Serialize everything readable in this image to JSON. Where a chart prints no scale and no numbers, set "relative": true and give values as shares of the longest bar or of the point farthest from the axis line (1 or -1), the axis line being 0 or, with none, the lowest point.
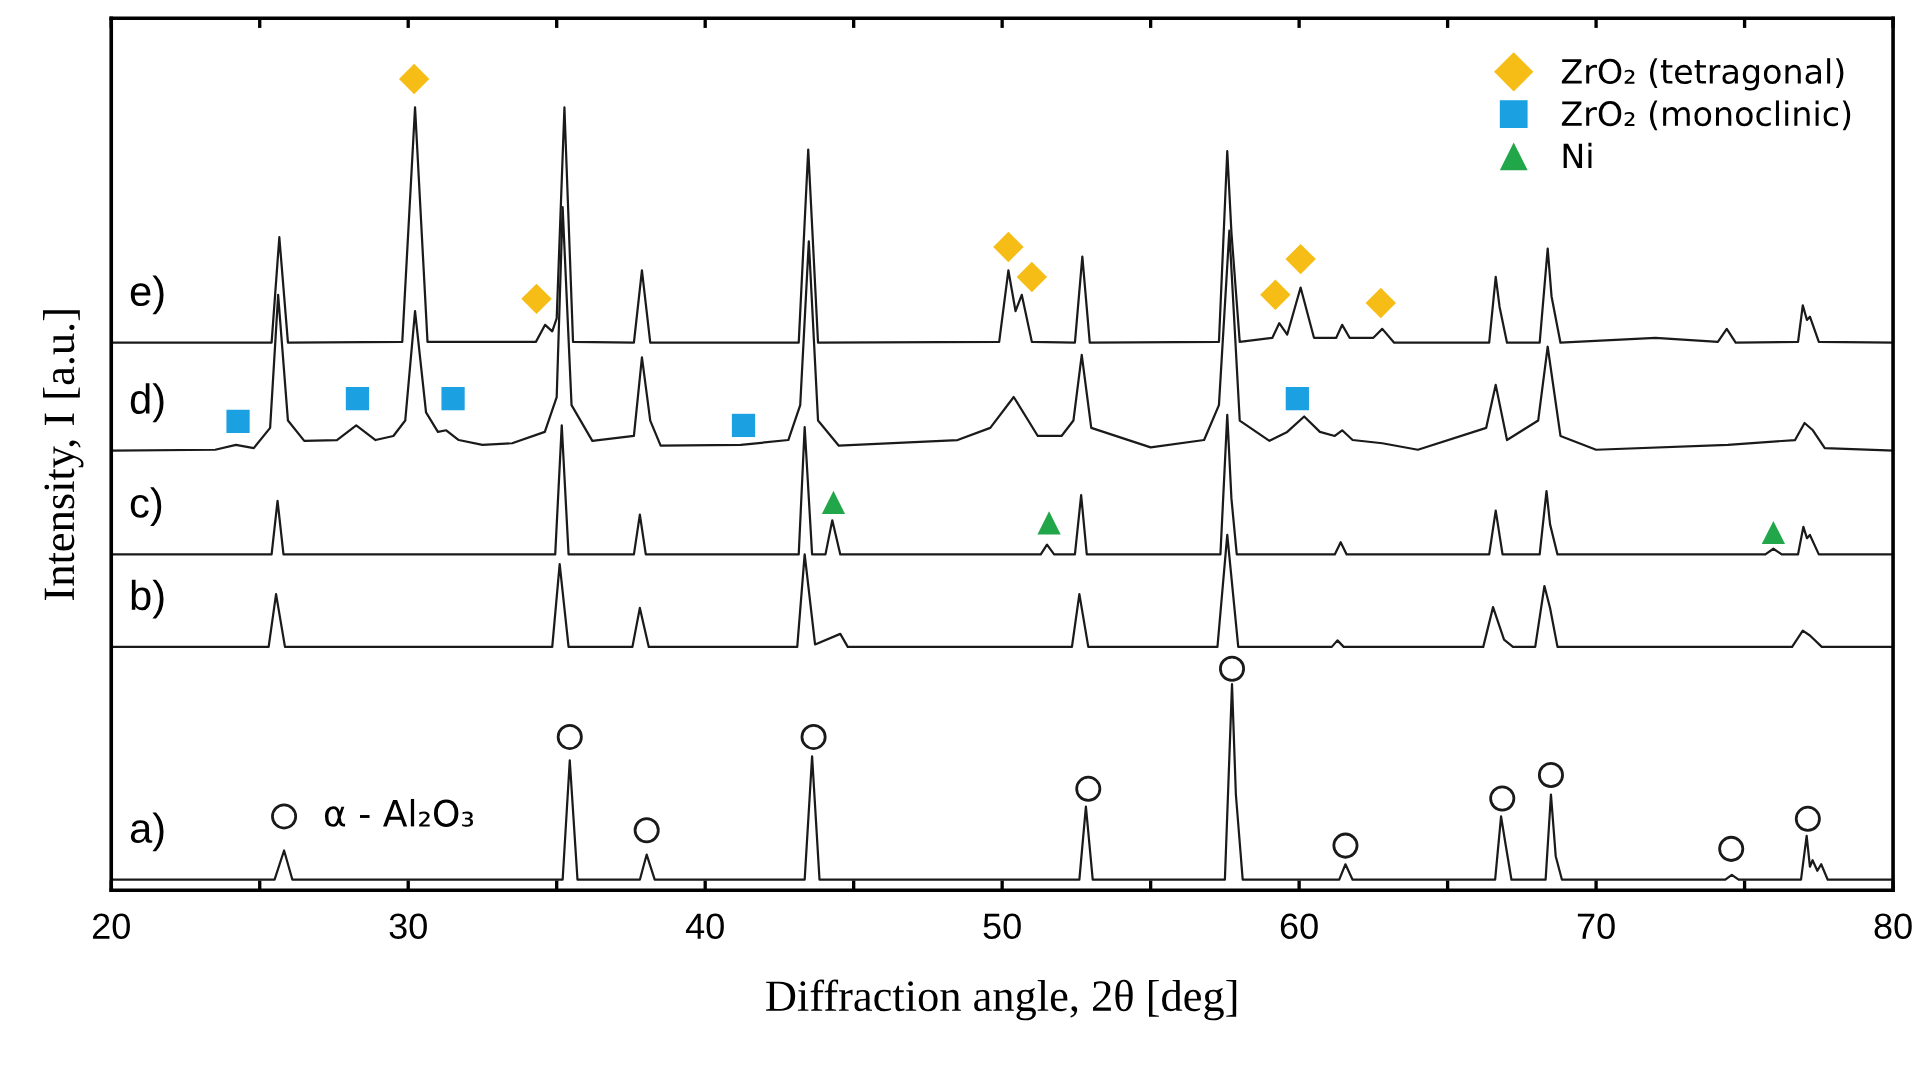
{
  "chart_data": {
    "type": "line",
    "relative": true,
    "xlabel": "Diffraction angle, 2θ [deg]",
    "ylabel": "Intensity, I [a.u.]",
    "xlim": [
      20,
      80
    ],
    "xticks": [
      20,
      {
        "value": 25,
        "label": null
      },
      30,
      {
        "value": 35,
        "label": null
      },
      40,
      {
        "value": 45,
        "label": null
      },
      50,
      {
        "value": 55,
        "label": null
      },
      60,
      {
        "value": 65,
        "label": null
      },
      70,
      {
        "value": 75,
        "label": null
      },
      80
    ],
    "grid": false,
    "legend": "top right",
    "annotations": [
      {
        "text": "α - Al₂O₃",
        "x": 25.82,
        "y": 0.091
      }
    ],
    "series": [
      {
        "name": "a)",
        "color": "#1a1a1a",
        "x": [
          20,
          25.5,
          25.82,
          26.1,
          35.2,
          35.44,
          35.7,
          37.8,
          38.03,
          38.3,
          43.35,
          43.6,
          43.85,
          52.6,
          52.82,
          53.05,
          57.5,
          57.74,
          57.87,
          58.1,
          61.35,
          61.56,
          61.8,
          66.6,
          66.8,
          66.95,
          67.15,
          68.3,
          68.48,
          68.64,
          68.85,
          74.35,
          74.57,
          74.8,
          76.9,
          77.09,
          77.2,
          77.29,
          77.45,
          77.58,
          77.8,
          80
        ],
        "values": [
          0.013,
          0.013,
          0.049,
          0.013,
          0.013,
          0.16,
          0.013,
          0.013,
          0.044,
          0.013,
          0.013,
          0.165,
          0.013,
          0.013,
          0.103,
          0.013,
          0.013,
          0.254,
          0.118,
          0.013,
          0.013,
          0.032,
          0.013,
          0.013,
          0.091,
          0.057,
          0.013,
          0.013,
          0.118,
          0.042,
          0.013,
          0.013,
          0.019,
          0.013,
          0.013,
          0.067,
          0.029,
          0.037,
          0.024,
          0.032,
          0.013,
          0.013
        ]
      },
      {
        "name": "b)",
        "color": "#1a1a1a",
        "x": [
          20,
          25.3,
          25.55,
          25.85,
          34.85,
          35.1,
          35.4,
          37.55,
          37.8,
          38.1,
          43.1,
          43.35,
          43.7,
          44.55,
          44.8,
          52.35,
          52.6,
          52.9,
          57.25,
          57.58,
          57.95,
          61.1,
          61.29,
          61.5,
          66.2,
          66.53,
          66.9,
          67.2,
          67.95,
          68.26,
          68.45,
          68.7,
          76.6,
          76.96,
          77.2,
          77.6,
          80
        ],
        "values": [
          0.3,
          0.3,
          0.365,
          0.3,
          0.3,
          0.402,
          0.3,
          0.3,
          0.348,
          0.3,
          0.3,
          0.414,
          0.303,
          0.316,
          0.3,
          0.3,
          0.365,
          0.3,
          0.3,
          0.438,
          0.3,
          0.3,
          0.308,
          0.3,
          0.3,
          0.349,
          0.309,
          0.3,
          0.3,
          0.375,
          0.348,
          0.3,
          0.3,
          0.32,
          0.314,
          0.3,
          0.3
        ]
      },
      {
        "name": "c)",
        "color": "#1a1a1a",
        "x": [
          20,
          25.4,
          25.6,
          25.8,
          34.95,
          35.17,
          35.4,
          37.6,
          37.8,
          38.0,
          43.15,
          43.35,
          43.6,
          44.05,
          44.28,
          44.55,
          51.3,
          51.51,
          51.75,
          52.45,
          52.66,
          52.85,
          57.35,
          57.58,
          57.72,
          57.9,
          61.2,
          61.4,
          61.6,
          66.4,
          66.62,
          66.85,
          68.1,
          68.33,
          68.45,
          68.7,
          75.7,
          75.97,
          76.25,
          76.8,
          76.98,
          77.1,
          77.2,
          77.5,
          80
        ],
        "values": [
          0.414,
          0.414,
          0.48,
          0.414,
          0.414,
          0.573,
          0.414,
          0.414,
          0.463,
          0.414,
          0.414,
          0.571,
          0.414,
          0.414,
          0.456,
          0.414,
          0.414,
          0.426,
          0.414,
          0.414,
          0.487,
          0.414,
          0.414,
          0.586,
          0.483,
          0.414,
          0.414,
          0.429,
          0.414,
          0.414,
          0.468,
          0.414,
          0.414,
          0.492,
          0.451,
          0.414,
          0.414,
          0.421,
          0.414,
          0.414,
          0.448,
          0.434,
          0.438,
          0.414,
          0.414
        ]
      },
      {
        "name": "d)",
        "color": "#1a1a1a",
        "x": [
          20,
          23.5,
          24.2,
          24.8,
          25.35,
          25.62,
          25.95,
          26.5,
          27.6,
          28.25,
          28.9,
          29.5,
          29.9,
          30.23,
          30.6,
          31.0,
          31.28,
          31.7,
          32.5,
          33.5,
          34.6,
          35.0,
          35.2,
          35.5,
          36.2,
          37.6,
          37.87,
          38.15,
          38.5,
          41.2,
          42.8,
          43.2,
          43.49,
          43.8,
          44.5,
          48.5,
          49.6,
          50.39,
          51.2,
          52.0,
          52.4,
          52.68,
          53.0,
          55.0,
          56.8,
          57.3,
          57.65,
          58.0,
          59.0,
          59.6,
          60.17,
          60.7,
          61.2,
          61.45,
          61.8,
          62.8,
          64.0,
          66.3,
          66.62,
          67.0,
          68.05,
          68.37,
          68.8,
          70.0,
          74.44,
          76.7,
          77.02,
          77.3,
          77.7,
          80
        ],
        "values": [
          0.542,
          0.543,
          0.549,
          0.545,
          0.57,
          0.734,
          0.579,
          0.554,
          0.555,
          0.573,
          0.555,
          0.56,
          0.579,
          0.714,
          0.589,
          0.565,
          0.567,
          0.555,
          0.549,
          0.551,
          0.565,
          0.608,
          0.842,
          0.598,
          0.554,
          0.56,
          0.657,
          0.579,
          0.548,
          0.549,
          0.555,
          0.598,
          0.8,
          0.579,
          0.548,
          0.555,
          0.57,
          0.608,
          0.56,
          0.56,
          0.579,
          0.66,
          0.57,
          0.546,
          0.555,
          0.598,
          0.813,
          0.579,
          0.554,
          0.565,
          0.584,
          0.565,
          0.56,
          0.567,
          0.555,
          0.551,
          0.543,
          0.57,
          0.623,
          0.555,
          0.579,
          0.67,
          0.56,
          0.543,
          0.549,
          0.555,
          0.576,
          0.567,
          0.545,
          0.542
        ]
      },
      {
        "name": "e)",
        "color": "#1a1a1a",
        "x": [
          20,
          25.4,
          25.66,
          25.95,
          29.8,
          30.23,
          30.65,
          34.3,
          34.61,
          34.85,
          35.0,
          35.26,
          35.55,
          37.6,
          37.87,
          38.15,
          43.15,
          43.47,
          43.8,
          49.9,
          50.21,
          50.45,
          50.66,
          51.0,
          52.45,
          52.7,
          52.95,
          57.3,
          57.58,
          57.72,
          58.0,
          59.1,
          59.33,
          59.6,
          60.05,
          60.5,
          61.25,
          61.45,
          61.7,
          62.5,
          62.8,
          63.2,
          66.4,
          66.62,
          66.75,
          67.0,
          68.1,
          68.37,
          68.5,
          68.8,
          72.0,
          74.1,
          74.4,
          74.7,
          76.8,
          76.96,
          77.1,
          77.2,
          77.5,
          80
        ],
        "values": [
          0.675,
          0.675,
          0.805,
          0.675,
          0.676,
          0.965,
          0.676,
          0.676,
          0.697,
          0.689,
          0.705,
          0.965,
          0.676,
          0.675,
          0.764,
          0.675,
          0.675,
          0.913,
          0.675,
          0.676,
          0.764,
          0.714,
          0.734,
          0.676,
          0.675,
          0.781,
          0.675,
          0.676,
          0.911,
          0.811,
          0.676,
          0.681,
          0.699,
          0.685,
          0.743,
          0.681,
          0.681,
          0.697,
          0.681,
          0.681,
          0.692,
          0.675,
          0.675,
          0.756,
          0.719,
          0.675,
          0.675,
          0.791,
          0.732,
          0.675,
          0.681,
          0.676,
          0.692,
          0.675,
          0.676,
          0.721,
          0.703,
          0.707,
          0.676,
          0.675
        ]
      },
      {
        "name": "ZrO₂ (tetragonal)",
        "type": "scatter",
        "marker": "diamond",
        "color": "#f6bd16",
        "x": [
          30.2,
          34.32,
          50.21,
          51.0,
          59.2,
          60.05,
          62.75
        ],
        "values": [
          1.0,
          0.729,
          0.793,
          0.756,
          0.734,
          0.778,
          0.724
        ]
      },
      {
        "name": "ZrO₂ (monoclinic)",
        "type": "scatter",
        "marker": "square",
        "color": "#1ba1e2",
        "x": [
          24.27,
          28.29,
          31.51,
          41.29,
          59.94
        ],
        "values": [
          0.578,
          0.606,
          0.606,
          0.573,
          0.606
        ]
      },
      {
        "name": "Ni",
        "type": "scatter",
        "marker": "triangle",
        "color": "#22a64a",
        "x": [
          44.32,
          51.58,
          75.97
        ],
        "values": [
          0.478,
          0.453,
          0.441
        ]
      },
      {
        "type": "scatter",
        "marker": "circle",
        "color": "#1a1a1a",
        "x": [
          25.82,
          35.44,
          38.03,
          43.65,
          52.9,
          57.74,
          61.56,
          66.84,
          68.48,
          74.55,
          77.13
        ],
        "values": [
          0.091,
          0.189,
          0.074,
          0.189,
          0.125,
          0.273,
          0.055,
          0.113,
          0.142,
          0.051,
          0.088
        ]
      }
    ]
  }
}
